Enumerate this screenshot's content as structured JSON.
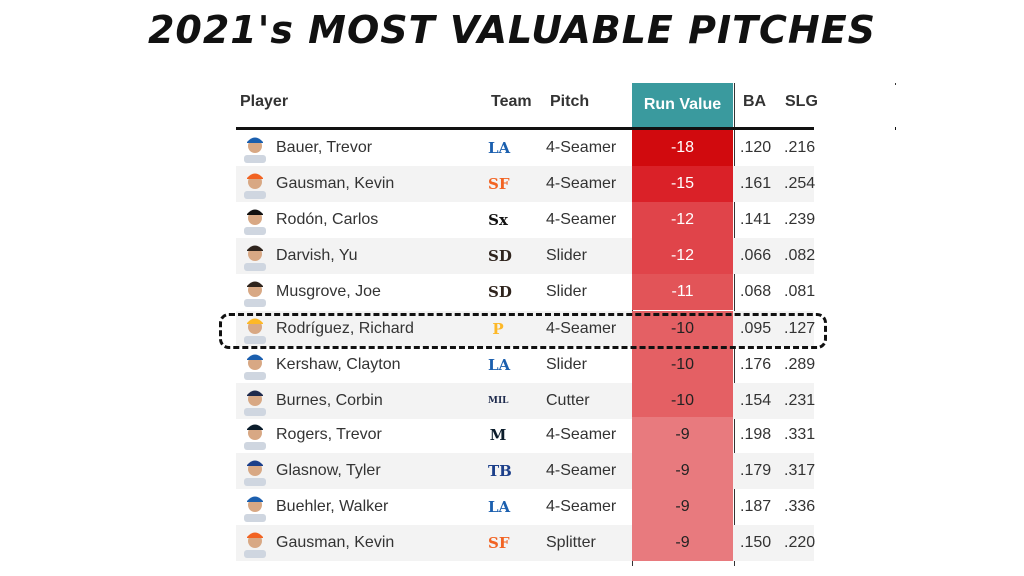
{
  "title": "2021's MOST VALUABLE PITCHES",
  "headers": {
    "player": "Player",
    "team": "Team",
    "pitch": "Pitch",
    "run_value": "Run Value",
    "ba": "BA",
    "slg": "SLG"
  },
  "colors": {
    "header_teal": "#3a9a9e",
    "rv_strong": "#d10a0e",
    "rv_light": "#e87a7e"
  },
  "highlighted_player": "Rodríguez, Richard",
  "rows": [
    {
      "player": "Bauer, Trevor",
      "team": "LA",
      "team_color": "#1b5fae",
      "pitch": "4-Seamer",
      "rv": "-18",
      "ba": ".120",
      "slg": ".216",
      "bg": "#d10a0e"
    },
    {
      "player": "Gausman, Kevin",
      "team": "SF",
      "team_color": "#f26322",
      "pitch": "4-Seamer",
      "rv": "-15",
      "ba": ".161",
      "slg": ".254",
      "bg": "#da2128"
    },
    {
      "player": "Rodón, Carlos",
      "team": "Sx",
      "team_color": "#111111",
      "pitch": "4-Seamer",
      "rv": "-12",
      "ba": ".141",
      "slg": ".239",
      "bg": "#e0444a"
    },
    {
      "player": "Darvish, Yu",
      "team": "SD",
      "team_color": "#2f241d",
      "pitch": "Slider",
      "rv": "-12",
      "ba": ".066",
      "slg": ".082",
      "bg": "#e0444a"
    },
    {
      "player": "Musgrove, Joe",
      "team": "SD",
      "team_color": "#2f241d",
      "pitch": "Slider",
      "rv": "-11",
      "ba": ".068",
      "slg": ".081",
      "bg": "#e25458"
    },
    {
      "player": "Rodríguez, Richard",
      "team": "P",
      "team_color": "#fdb827",
      "pitch": "4-Seamer",
      "rv": "-10",
      "ba": ".095",
      "slg": ".127",
      "bg": "#e46064"
    },
    {
      "player": "Kershaw, Clayton",
      "team": "LA",
      "team_color": "#1b5fae",
      "pitch": "Slider",
      "rv": "-10",
      "ba": ".176",
      "slg": ".289",
      "bg": "#e46064"
    },
    {
      "player": "Burnes, Corbin",
      "team": "MIL",
      "team_color": "#1f2b4d",
      "pitch": "Cutter",
      "rv": "-10",
      "ba": ".154",
      "slg": ".231",
      "bg": "#e46064"
    },
    {
      "player": "Rogers, Trevor",
      "team": "M",
      "team_color": "#0b1c2b",
      "pitch": "4-Seamer",
      "rv": "-9",
      "ba": ".198",
      "slg": ".331",
      "bg": "#e87a7e"
    },
    {
      "player": "Glasnow, Tyler",
      "team": "TB",
      "team_color": "#1c3f8a",
      "pitch": "4-Seamer",
      "rv": "-9",
      "ba": ".179",
      "slg": ".317",
      "bg": "#e87a7e"
    },
    {
      "player": "Buehler, Walker",
      "team": "LA",
      "team_color": "#1b5fae",
      "pitch": "4-Seamer",
      "rv": "-9",
      "ba": ".187",
      "slg": ".336",
      "bg": "#e87a7e"
    },
    {
      "player": "Gausman, Kevin",
      "team": "SF",
      "team_color": "#f26322",
      "pitch": "Splitter",
      "rv": "-9",
      "ba": ".150",
      "slg": ".220",
      "bg": "#e87a7e"
    }
  ],
  "chart_data": {
    "type": "table",
    "title": "2021's MOST VALUABLE PITCHES",
    "columns": [
      "Player",
      "Team",
      "Pitch",
      "Run Value",
      "BA",
      "SLG"
    ],
    "rows": [
      [
        "Bauer, Trevor",
        "LA",
        "4-Seamer",
        -18,
        ".120",
        ".216"
      ],
      [
        "Gausman, Kevin",
        "SF",
        "4-Seamer",
        -15,
        ".161",
        ".254"
      ],
      [
        "Rodón, Carlos",
        "Sx",
        "4-Seamer",
        -12,
        ".141",
        ".239"
      ],
      [
        "Darvish, Yu",
        "SD",
        "Slider",
        -12,
        ".066",
        ".082"
      ],
      [
        "Musgrove, Joe",
        "SD",
        "Slider",
        -11,
        ".068",
        ".081"
      ],
      [
        "Rodríguez, Richard",
        "P",
        "4-Seamer",
        -10,
        ".095",
        ".127"
      ],
      [
        "Kershaw, Clayton",
        "LA",
        "Slider",
        -10,
        ".176",
        ".289"
      ],
      [
        "Burnes, Corbin",
        "MIL",
        "Cutter",
        -10,
        ".154",
        ".231"
      ],
      [
        "Rogers, Trevor",
        "M",
        "4-Seamer",
        -9,
        ".198",
        ".331"
      ],
      [
        "Glasnow, Tyler",
        "TB",
        "4-Seamer",
        -9,
        ".179",
        ".317"
      ],
      [
        "Buehler, Walker",
        "LA",
        "4-Seamer",
        -9,
        ".187",
        ".336"
      ],
      [
        "Gausman, Kevin",
        "SF",
        "Splitter",
        -9,
        ".150",
        ".220"
      ]
    ]
  }
}
